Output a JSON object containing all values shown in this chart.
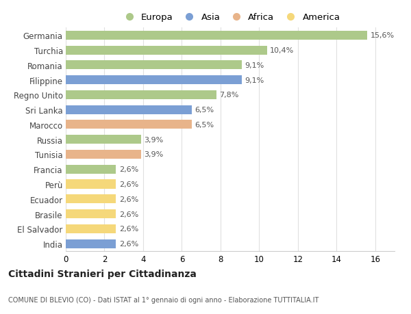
{
  "countries": [
    "Germania",
    "Turchia",
    "Romania",
    "Filippine",
    "Regno Unito",
    "Sri Lanka",
    "Marocco",
    "Russia",
    "Tunisia",
    "Francia",
    "Perù",
    "Ecuador",
    "Brasile",
    "El Salvador",
    "India"
  ],
  "values": [
    15.6,
    10.4,
    9.1,
    9.1,
    7.8,
    6.5,
    6.5,
    3.9,
    3.9,
    2.6,
    2.6,
    2.6,
    2.6,
    2.6,
    2.6
  ],
  "labels": [
    "15,6%",
    "10,4%",
    "9,1%",
    "9,1%",
    "7,8%",
    "6,5%",
    "6,5%",
    "3,9%",
    "3,9%",
    "2,6%",
    "2,6%",
    "2,6%",
    "2,6%",
    "2,6%",
    "2,6%"
  ],
  "continents": [
    "Europa",
    "Europa",
    "Europa",
    "Asia",
    "Europa",
    "Asia",
    "Africa",
    "Europa",
    "Africa",
    "Europa",
    "America",
    "America",
    "America",
    "America",
    "Asia"
  ],
  "colors": {
    "Europa": "#adc98a",
    "Asia": "#7b9fd4",
    "Africa": "#e8b48a",
    "America": "#f5d87a"
  },
  "legend_order": [
    "Europa",
    "Asia",
    "Africa",
    "America"
  ],
  "title": "Cittadini Stranieri per Cittadinanza",
  "subtitle": "COMUNE DI BLEVIO (CO) - Dati ISTAT al 1° gennaio di ogni anno - Elaborazione TUTTITALIA.IT",
  "xlim": [
    0,
    17.0
  ],
  "xticks": [
    0,
    2,
    4,
    6,
    8,
    10,
    12,
    14,
    16
  ],
  "bg_color": "#ffffff",
  "grid_color": "#e0e0e0"
}
